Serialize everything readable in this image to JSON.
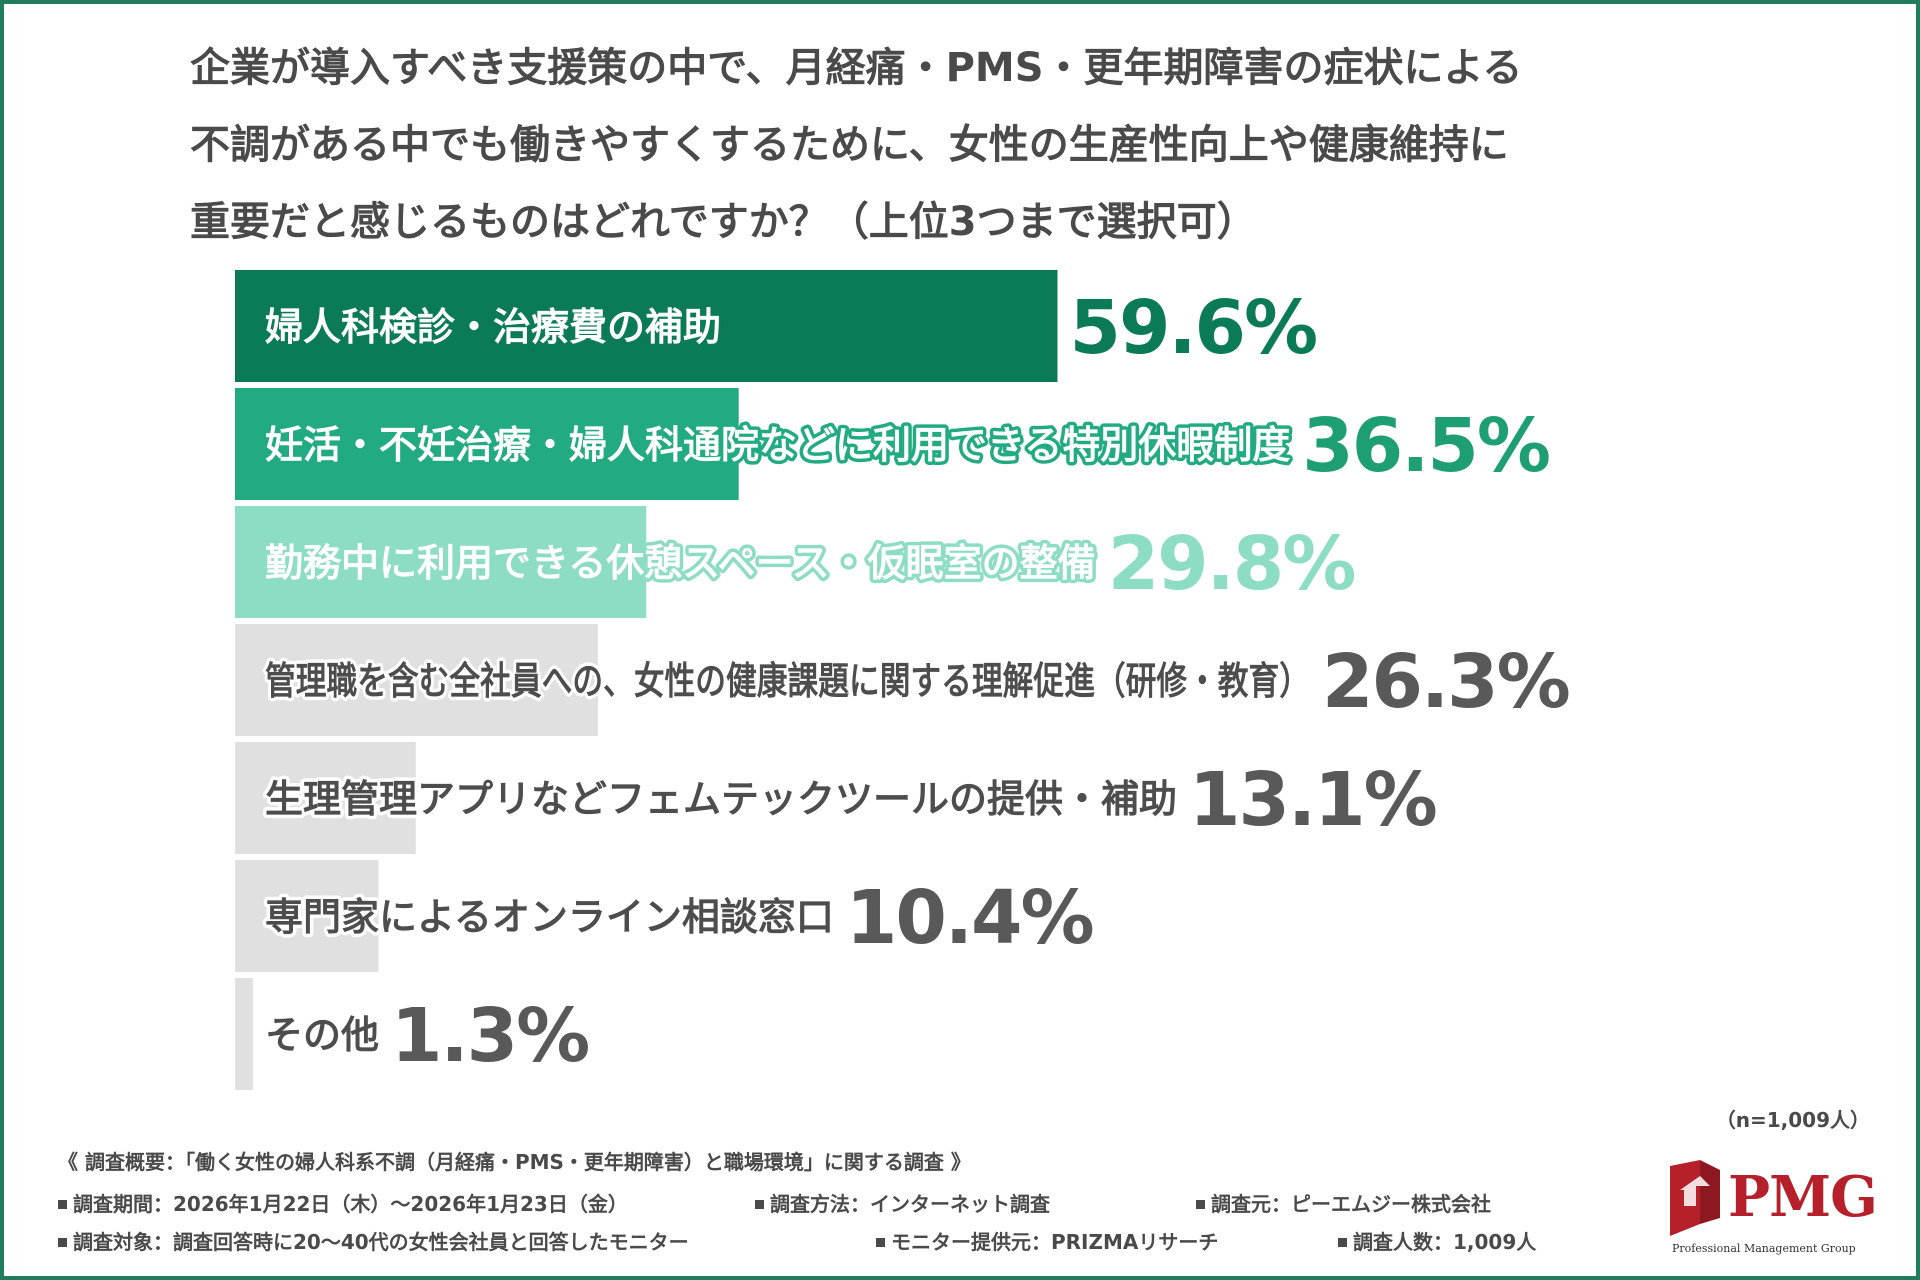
{
  "title_lines": [
    "企業が導入すべき支援策の中で、月経痛・PMS・更年期障害の症状による",
    "不調がある中でも働きやすくするために、女性の生産性向上や健康維持に",
    "重要だと感じるものはどれですか？（上位3つまで選択可）"
  ],
  "chart_data": {
    "type": "bar",
    "orientation": "horizontal",
    "title": "企業が導入すべき支援策の中で、月経痛・PMS・更年期障害の症状による不調がある中でも働きやすくするために、女性の生産性向上や健康維持に重要だと感じるものはどれですか？（上位3つまで選択可）",
    "categories": [
      "婦人科検診・治療費の補助",
      "妊活・不妊治療・婦人科通院などに利用できる特別休暇制度",
      "勤務中に利用できる休憩スペース・仮眠室の整備",
      "管理職を含む全社員への、女性の健康課題に関する理解促進（研修・教育）",
      "生理管理アプリなどフェムテックツールの提供・補助",
      "専門家によるオンライン相談窓口",
      "その他"
    ],
    "values": [
      59.6,
      36.5,
      29.8,
      26.3,
      13.1,
      10.4,
      1.3
    ],
    "value_labels": [
      "59.6%",
      "36.5%",
      "29.8%",
      "26.3%",
      "13.1%",
      "10.4%",
      "1.3%"
    ],
    "unit": "%",
    "bar_colors": [
      "#0b7a56",
      "#22ab82",
      "#8ddcc4",
      "#e0e0e0",
      "#e0e0e0",
      "#e0e0e0",
      "#e0e0e0"
    ],
    "value_colors": [
      "#0b7a56",
      "#1e9e73",
      "#8ddcc4",
      "#595959",
      "#595959",
      "#595959",
      "#595959"
    ],
    "label_colors": [
      "#ffffff",
      "#ffffff",
      "#ffffff",
      "#4d4d4d",
      "#4d4d4d",
      "#4d4d4d",
      "#4d4d4d"
    ],
    "outline_colors": [
      "#0b7a56",
      "#22ab82",
      "#8ddcc4",
      "#ffffff",
      "#ffffff",
      "#ffffff",
      "#ffffff"
    ],
    "xlim": [
      0,
      100
    ],
    "grid": false,
    "legend": "none"
  },
  "sample_note": "（n=1,009人）",
  "survey": {
    "heading": "《 調査概要：「働く女性の婦人科系不調（月経痛・PMS・更年期障害）と職場環境」に関する調査 》",
    "period": "調査期間：2026年1月22日（木）～2026年1月23日（金）",
    "method": "調査方法：インターネット調査",
    "organizer": "調査元：ピーエムジー株式会社",
    "target": "調査対象：調査回答時に20～40代の女性会社員と回答したモニター",
    "provider": "モニター提供元：PRIZMAリサーチ",
    "respondents": "調査人数：1,009人"
  },
  "logo": {
    "name": "PMG",
    "tagline": "Professional Management Group",
    "color": "#b5202a"
  },
  "colors": {
    "frame": "#1f7d5c",
    "text": "#4a4a4a"
  }
}
